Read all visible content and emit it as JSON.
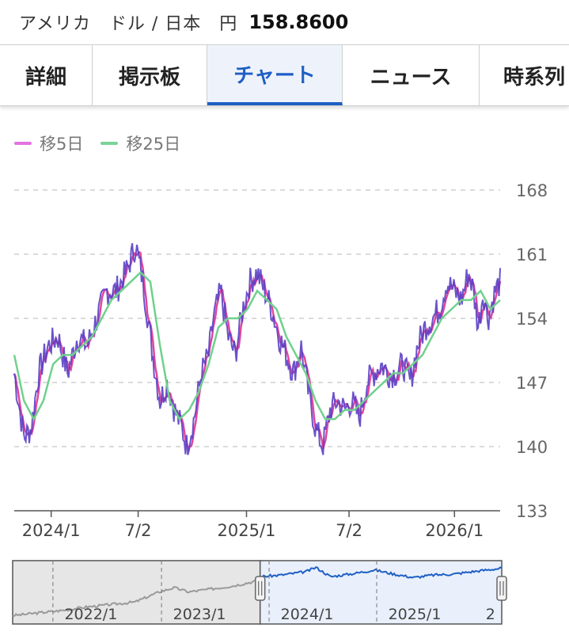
{
  "header": {
    "pair": "アメリカ　ドル / 日本　円",
    "price": "158.8600"
  },
  "tabs": [
    {
      "label": "詳細",
      "active": false
    },
    {
      "label": "掲示板",
      "active": false
    },
    {
      "label": "チャート",
      "active": true
    },
    {
      "label": "ニュース",
      "active": false
    },
    {
      "label": "時系列",
      "active": false
    }
  ],
  "colors": {
    "accent": "#1f5fc4",
    "price": "#5b3fc4",
    "ma5": "#e0479e",
    "ma25": "#6fd18c",
    "navline": "#1f5fc4",
    "navgray": "#9a9a9a"
  },
  "chart_data": {
    "type": "line",
    "legend": [
      {
        "name": "移5日",
        "color": "#e274e0"
      },
      {
        "name": "移25日",
        "color": "#7ad39a"
      }
    ],
    "ylim": [
      133,
      168
    ],
    "y_ticks": [
      "168",
      "161",
      "154",
      "147",
      "140",
      "133"
    ],
    "x_ticks": [
      "2024/1",
      "7/2",
      "2025/1",
      "7/2",
      "2026/1"
    ],
    "x_tick_positions": [
      0.076,
      0.255,
      0.478,
      0.689,
      0.906
    ],
    "price_points": [
      [
        0,
        148
      ],
      [
        0.02,
        141
      ],
      [
        0.035,
        142
      ],
      [
        0.05,
        148
      ],
      [
        0.07,
        151
      ],
      [
        0.09,
        152
      ],
      [
        0.11,
        148
      ],
      [
        0.13,
        152
      ],
      [
        0.15,
        151
      ],
      [
        0.17,
        154
      ],
      [
        0.19,
        157
      ],
      [
        0.21,
        157
      ],
      [
        0.23,
        159
      ],
      [
        0.25,
        162
      ],
      [
        0.265,
        158
      ],
      [
        0.285,
        150
      ],
      [
        0.3,
        145
      ],
      [
        0.315,
        147
      ],
      [
        0.33,
        144
      ],
      [
        0.345,
        142
      ],
      [
        0.355,
        140
      ],
      [
        0.37,
        143
      ],
      [
        0.385,
        148
      ],
      [
        0.4,
        150
      ],
      [
        0.41,
        154
      ],
      [
        0.425,
        157
      ],
      [
        0.44,
        152
      ],
      [
        0.455,
        150
      ],
      [
        0.47,
        155
      ],
      [
        0.485,
        158
      ],
      [
        0.5,
        159
      ],
      [
        0.515,
        157
      ],
      [
        0.53,
        155
      ],
      [
        0.545,
        152
      ],
      [
        0.56,
        150
      ],
      [
        0.575,
        148
      ],
      [
        0.59,
        151
      ],
      [
        0.605,
        146
      ],
      [
        0.62,
        142
      ],
      [
        0.635,
        140
      ],
      [
        0.65,
        144
      ],
      [
        0.665,
        145
      ],
      [
        0.68,
        144
      ],
      [
        0.695,
        145
      ],
      [
        0.71,
        143
      ],
      [
        0.725,
        147
      ],
      [
        0.74,
        148
      ],
      [
        0.755,
        149
      ],
      [
        0.77,
        148
      ],
      [
        0.785,
        148
      ],
      [
        0.8,
        149
      ],
      [
        0.815,
        147
      ],
      [
        0.83,
        151
      ],
      [
        0.845,
        153
      ],
      [
        0.86,
        154
      ],
      [
        0.875,
        155
      ],
      [
        0.89,
        158
      ],
      [
        0.905,
        157
      ],
      [
        0.92,
        156
      ],
      [
        0.935,
        159
      ],
      [
        0.945,
        157
      ],
      [
        0.955,
        153
      ],
      [
        0.965,
        157
      ],
      [
        0.975,
        154
      ],
      [
        0.99,
        157
      ],
      [
        1,
        158
      ]
    ],
    "ma25_points": [
      [
        0,
        150
      ],
      [
        0.02,
        145
      ],
      [
        0.04,
        143
      ],
      [
        0.06,
        145
      ],
      [
        0.08,
        149
      ],
      [
        0.1,
        150
      ],
      [
        0.12,
        150
      ],
      [
        0.14,
        151
      ],
      [
        0.16,
        152
      ],
      [
        0.18,
        154
      ],
      [
        0.2,
        156
      ],
      [
        0.22,
        157
      ],
      [
        0.24,
        158
      ],
      [
        0.26,
        159
      ],
      [
        0.28,
        158
      ],
      [
        0.3,
        151
      ],
      [
        0.32,
        145
      ],
      [
        0.34,
        143
      ],
      [
        0.36,
        144
      ],
      [
        0.38,
        146
      ],
      [
        0.4,
        149
      ],
      [
        0.42,
        153
      ],
      [
        0.44,
        154
      ],
      [
        0.46,
        154
      ],
      [
        0.48,
        155
      ],
      [
        0.5,
        157
      ],
      [
        0.52,
        156
      ],
      [
        0.54,
        155
      ],
      [
        0.56,
        152
      ],
      [
        0.58,
        150
      ],
      [
        0.6,
        148
      ],
      [
        0.62,
        145
      ],
      [
        0.64,
        143
      ],
      [
        0.66,
        143
      ],
      [
        0.68,
        144
      ],
      [
        0.7,
        144
      ],
      [
        0.72,
        145
      ],
      [
        0.74,
        146
      ],
      [
        0.76,
        147
      ],
      [
        0.78,
        148
      ],
      [
        0.8,
        148
      ],
      [
        0.82,
        149
      ],
      [
        0.84,
        150
      ],
      [
        0.86,
        152
      ],
      [
        0.88,
        154
      ],
      [
        0.9,
        155
      ],
      [
        0.92,
        156
      ],
      [
        0.94,
        156
      ],
      [
        0.96,
        157
      ],
      [
        0.98,
        155
      ],
      [
        1,
        156
      ]
    ]
  },
  "navigator": {
    "labels": [
      "2022/1",
      "2023/1",
      "2024/1",
      "2025/1",
      "2"
    ],
    "label_positions": [
      0.16,
      0.382,
      0.602,
      0.822,
      0.99
    ],
    "selection": [
      0.506,
      1.0
    ],
    "history_points": [
      [
        0,
        100
      ],
      [
        0.05,
        103
      ],
      [
        0.1,
        106
      ],
      [
        0.15,
        110
      ],
      [
        0.2,
        113
      ],
      [
        0.25,
        116
      ],
      [
        0.3,
        128
      ],
      [
        0.33,
        133
      ],
      [
        0.36,
        128
      ],
      [
        0.4,
        131
      ],
      [
        0.45,
        135
      ],
      [
        0.5,
        141
      ],
      [
        0.506,
        146
      ],
      [
        0.55,
        148
      ],
      [
        0.6,
        152
      ],
      [
        0.62,
        157
      ],
      [
        0.65,
        146
      ],
      [
        0.7,
        150
      ],
      [
        0.74,
        154
      ],
      [
        0.78,
        149
      ],
      [
        0.82,
        145
      ],
      [
        0.86,
        148
      ],
      [
        0.9,
        149
      ],
      [
        0.94,
        152
      ],
      [
        0.97,
        154
      ],
      [
        1,
        156
      ]
    ],
    "ylim": [
      90,
      165
    ]
  }
}
